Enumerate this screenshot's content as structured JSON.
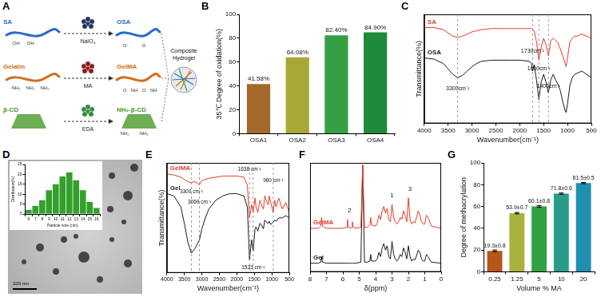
{
  "diagram": {
    "panel": "A",
    "rows": [
      {
        "start": "SA",
        "reagent": "NaIO₄",
        "product": "OSA",
        "color": "#2a6cc8",
        "start_groups": [
          "OH",
          "OH"
        ],
        "product_groups": [
          "O",
          "O"
        ]
      },
      {
        "start": "Gelatin",
        "reagent": "MA",
        "product": "GelMA",
        "color": "#d07020",
        "start_groups": [
          "NH₂",
          "NH₂",
          "NH₂"
        ],
        "product_groups": [
          "O",
          "NH",
          "O",
          "NH"
        ]
      },
      {
        "start": "β-CD",
        "reagent": "EDA",
        "product": "NH₂-β-CD",
        "color": "#4a9a2a",
        "product_groups": [
          "NH₂",
          "NH₂"
        ]
      }
    ],
    "result": "Composite Hydrogel"
  },
  "image": {
    "panel": "D",
    "scale_bar": "100 nm"
  },
  "chart_data": [
    {
      "panel": "B",
      "type": "bar",
      "categories": [
        "OSA1",
        "OSA2",
        "OSA3",
        "OSA4"
      ],
      "values": [
        41.58,
        64.08,
        82.4,
        84.9
      ],
      "value_labels": [
        "41.58%",
        "64.08%",
        "82.40%",
        "84.90%"
      ],
      "colors": [
        "#a3692c",
        "#a8a934",
        "#34a043",
        "#1f8a3c"
      ],
      "y_label": "35℃ Degree of oxidation(%)",
      "ylim": [
        0,
        100
      ],
      "yticks": [
        0,
        20,
        40,
        60,
        80,
        100
      ],
      "data_labels": true
    },
    {
      "panel": "C",
      "type": "line",
      "x": [
        4000,
        3800,
        3600,
        3500,
        3400,
        3300,
        3200,
        3100,
        3000,
        2900,
        2800,
        2600,
        2400,
        2200,
        2000,
        1800,
        1750,
        1730,
        1700,
        1650,
        1600,
        1550,
        1500,
        1450,
        1400,
        1350,
        1300,
        1250,
        1200,
        1150,
        1100,
        1050,
        1030,
        1000,
        950,
        900,
        850,
        800,
        700,
        600,
        500
      ],
      "series": [
        {
          "name": "SA",
          "color": "#e53b2c",
          "values": [
            88,
            88,
            86,
            83,
            80,
            79,
            80,
            82,
            84,
            85,
            86,
            87,
            87,
            87,
            87,
            87,
            87,
            86,
            85,
            75,
            58,
            70,
            78,
            72,
            62,
            76,
            78,
            76,
            74,
            68,
            62,
            55,
            52,
            60,
            75,
            78,
            80,
            80,
            82,
            80,
            78
          ]
        },
        {
          "name": "OSA",
          "color": "#1a1a1a",
          "values": [
            60,
            59,
            55,
            50,
            45,
            42,
            44,
            48,
            52,
            55,
            57,
            58,
            58,
            58,
            58,
            57,
            55,
            48,
            54,
            40,
            22,
            38,
            45,
            38,
            28,
            40,
            45,
            40,
            36,
            30,
            20,
            12,
            10,
            18,
            35,
            42,
            45,
            46,
            48,
            45,
            42
          ]
        }
      ],
      "x_label": "Wavenumber(cm⁻¹)",
      "y_label": "Transmittance(%)",
      "xlim": [
        4000,
        500
      ],
      "xticks": [
        4000,
        3500,
        3000,
        2500,
        2000,
        1500,
        1000,
        500
      ],
      "ylim": [
        0,
        100
      ],
      "tick_labels": "x",
      "vlines": [
        3300,
        1730,
        1600,
        1400
      ],
      "annotations": [
        {
          "text": "3300cm⁻¹",
          "x": 3300,
          "y": 32
        },
        {
          "text": "1730cm⁻¹",
          "x": 1730,
          "y": 66
        },
        {
          "text": "1600cm⁻¹",
          "x": 1600,
          "y": 50
        },
        {
          "text": "1400cm⁻¹",
          "x": 1400,
          "y": 34
        }
      ]
    },
    {
      "type": "bar",
      "categories": [
        6,
        7,
        8,
        9,
        10,
        11,
        12,
        13,
        14,
        15,
        16
      ],
      "values": [
        2,
        4,
        7,
        12,
        15,
        19,
        21,
        17,
        12,
        6,
        3
      ],
      "color": "#33a02c",
      "x_label": "Particle size (nm)",
      "y_label": "Distribution(%)",
      "ylim": [
        0,
        25
      ],
      "yticks": [
        0,
        5,
        10,
        15,
        20,
        25
      ]
    },
    {
      "panel": "E",
      "type": "line",
      "x": [
        4000,
        3800,
        3600,
        3500,
        3400,
        3300,
        3200,
        3069,
        3000,
        2900,
        2800,
        2600,
        2400,
        2200,
        2000,
        1800,
        1700,
        1638,
        1580,
        1533,
        1480,
        1450,
        1400,
        1340,
        1300,
        1240,
        1200,
        1150,
        1100,
        1080,
        1030,
        960,
        920,
        880,
        800,
        700,
        600,
        500
      ],
      "series": [
        {
          "name": "GelMA",
          "color": "#e53b2c",
          "values": [
            90,
            89,
            87,
            85,
            83,
            82,
            83,
            80,
            84,
            85,
            86,
            87,
            88,
            88,
            88,
            87,
            80,
            50,
            62,
            55,
            68,
            60,
            55,
            66,
            62,
            58,
            70,
            65,
            62,
            70,
            64,
            55,
            66,
            60,
            68,
            58,
            64,
            55
          ]
        },
        {
          "name": "Gel",
          "color": "#1a1a1a",
          "values": [
            72,
            70,
            60,
            45,
            28,
            18,
            22,
            30,
            40,
            50,
            58,
            66,
            70,
            72,
            72,
            70,
            60,
            12,
            30,
            20,
            40,
            42,
            38,
            45,
            44,
            40,
            48,
            46,
            45,
            47,
            44,
            46,
            48,
            47,
            50,
            50,
            52,
            50
          ]
        }
      ],
      "x_label": "Wavenumber(cm⁻¹)",
      "y_label": "Transmittance(%)",
      "xlim": [
        4000,
        500
      ],
      "xticks": [
        4000,
        3500,
        3000,
        2500,
        2000,
        1500,
        1000,
        500
      ],
      "ylim": [
        0,
        100
      ],
      "tick_labels": "x",
      "vlines": [
        3300,
        3069,
        1638,
        1533,
        960
      ],
      "annotations": [
        {
          "text": "3300 cm⁻¹",
          "x": 3300,
          "y": 74
        },
        {
          "text": "3069 cm⁻¹",
          "x": 3069,
          "y": 64
        },
        {
          "text": "1638 cm⁻¹",
          "x": 1638,
          "y": 94
        },
        {
          "text": "1533 cm⁻¹",
          "x": 1533,
          "y": 5
        },
        {
          "text": "960 cm⁻¹",
          "x": 960,
          "y": 84
        }
      ]
    },
    {
      "panel": "F",
      "type": "line",
      "x": [
        8.0,
        7.5,
        7.35,
        7.3,
        7.25,
        7.0,
        6.0,
        5.75,
        5.72,
        5.68,
        5.5,
        5.45,
        5.42,
        5.38,
        5.2,
        4.9,
        4.79,
        4.68,
        4.5,
        4.35,
        4.3,
        4.25,
        4.0,
        3.9,
        3.8,
        3.7,
        3.6,
        3.5,
        3.4,
        3.3,
        3.2,
        3.1,
        3.0,
        2.9,
        2.8,
        2.7,
        2.6,
        2.5,
        2.4,
        2.3,
        2.2,
        2.1,
        2.0,
        1.9,
        1.8,
        1.7,
        1.6,
        1.5,
        1.4,
        1.3,
        1.2,
        1.1,
        1.0,
        0.9,
        0.8,
        0.6,
        0.0
      ],
      "series": [
        {
          "name": "GelMA",
          "color": "#e53b2c",
          "values": [
            40,
            40,
            42,
            50,
            42,
            40,
            40,
            41,
            48,
            41,
            40,
            41,
            46,
            41,
            40,
            41,
            98,
            41,
            41,
            43,
            50,
            43,
            42,
            45,
            52,
            48,
            56,
            60,
            54,
            58,
            48,
            46,
            62,
            50,
            46,
            44,
            46,
            50,
            48,
            56,
            52,
            46,
            68,
            48,
            44,
            46,
            45,
            50,
            56,
            52,
            46,
            44,
            44,
            52,
            50,
            42,
            40
          ]
        },
        {
          "name": "Gel",
          "color": "#1a1a1a",
          "values": [
            8,
            8,
            9,
            14,
            9,
            8,
            8,
            8,
            8,
            8,
            8,
            8,
            8,
            8,
            8,
            9,
            98,
            9,
            9,
            10,
            16,
            10,
            10,
            12,
            18,
            14,
            22,
            26,
            20,
            24,
            14,
            12,
            28,
            16,
            12,
            10,
            12,
            16,
            14,
            22,
            18,
            12,
            24,
            14,
            10,
            12,
            11,
            15,
            20,
            18,
            12,
            10,
            10,
            16,
            14,
            9,
            8
          ]
        }
      ],
      "x_label": "δ(ppm)",
      "xlim": [
        8,
        0
      ],
      "xticks": [
        8,
        7,
        6,
        5,
        4,
        3,
        2,
        1,
        0
      ],
      "ylim": [
        0,
        100
      ],
      "tick_labels": "x",
      "annotations": [
        {
          "text": "1",
          "x": 3.0,
          "y": 70
        },
        {
          "text": "2",
          "x": 5.6,
          "y": 56
        },
        {
          "text": "3",
          "x": 1.9,
          "y": 76
        }
      ]
    },
    {
      "panel": "G",
      "type": "bar",
      "categories": [
        "0.25",
        "1.25",
        "5",
        "10",
        "20"
      ],
      "values": [
        19.3,
        53.9,
        60.1,
        71.8,
        81.5
      ],
      "errors": [
        0.8,
        0.7,
        0.8,
        0.6,
        0.5
      ],
      "value_labels": [
        "19.3±0.8",
        "53.9±0.7",
        "60.1±0.8",
        "71.8±0.6",
        "81.5±0.5"
      ],
      "colors": [
        "#b5561b",
        "#a9b23c",
        "#30a246",
        "#2a9d8a",
        "#1f8fb0"
      ],
      "x_label": "Volume % MA",
      "y_label": "Degree of methacrylation",
      "ylim": [
        0,
        100
      ],
      "yticks": [
        0,
        20,
        40,
        60,
        80,
        100
      ],
      "data_labels": true
    }
  ]
}
